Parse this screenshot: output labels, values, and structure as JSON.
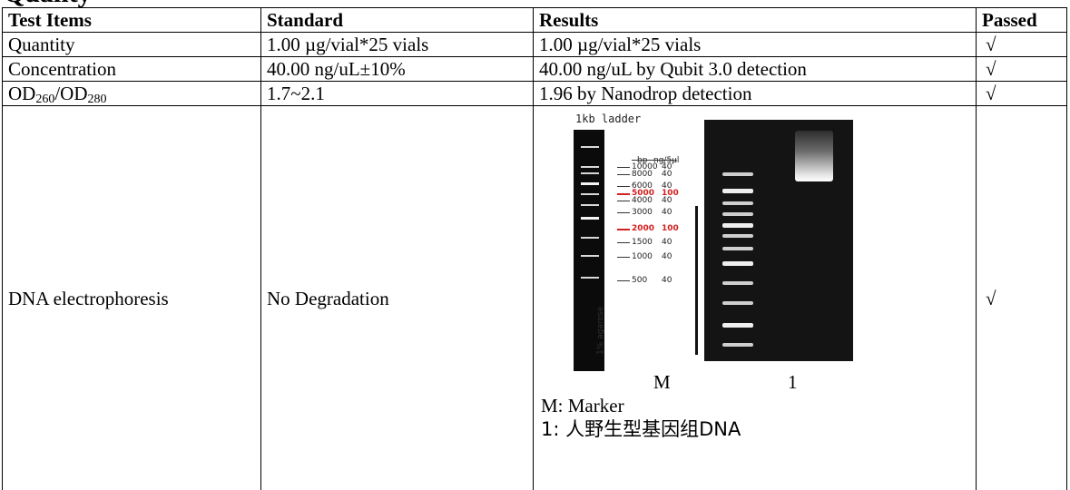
{
  "heading_fragment": "Quality",
  "table": {
    "headers": {
      "test_items": "Test Items",
      "standard": "Standard",
      "results": "Results",
      "passed": "Passed"
    },
    "rows": [
      {
        "item": "Quantity",
        "standard": "1.00 µg/vial*25 vials",
        "result": "1.00 µg/vial*25 vials",
        "passed": "√"
      },
      {
        "item": "Concentration",
        "standard": "40.00 ng/uL±10%",
        "result": "40.00 ng/uL by Qubit 3.0 detection",
        "passed": "√"
      },
      {
        "item_od": "OD",
        "item_sub1": "260",
        "item_slash": "/OD",
        "item_sub2": "280",
        "standard": "1.7~2.1",
        "result": "1.96 by Nanodrop detection",
        "passed": "√"
      },
      {
        "item": "DNA electrophoresis",
        "standard": "No Degradation",
        "passed": "√"
      }
    ]
  },
  "gel": {
    "ladder_title": "1kb ladder",
    "agarose_label": "1% agarose",
    "col_bp": "bp",
    "col_ng": "ng/5µl",
    "ladder_entries": [
      {
        "bp": "10000",
        "ng": "40",
        "highlight": false
      },
      {
        "bp": "8000",
        "ng": "40",
        "highlight": false
      },
      {
        "bp": "6000",
        "ng": "40",
        "highlight": false
      },
      {
        "bp": "5000",
        "ng": "100",
        "highlight": true
      },
      {
        "bp": "4000",
        "ng": "40",
        "highlight": false
      },
      {
        "bp": "3000",
        "ng": "40",
        "highlight": false
      },
      {
        "bp": "2000",
        "ng": "100",
        "highlight": true
      },
      {
        "bp": "1500",
        "ng": "40",
        "highlight": false
      },
      {
        "bp": "1000",
        "ng": "40",
        "highlight": false
      },
      {
        "bp": "500",
        "ng": "40",
        "highlight": false
      }
    ],
    "lane_m": "M",
    "lane_1": "1",
    "legend_m": "M: Marker",
    "legend_1": "1:  人野生型基因组DNA",
    "highlight_color": "#d32020"
  }
}
